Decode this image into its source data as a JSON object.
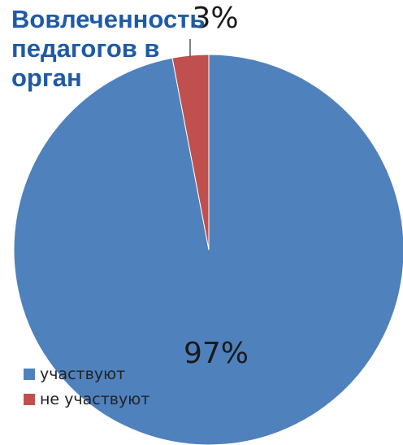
{
  "title": "Вовлеченность\nпедагогов в\nорган",
  "colors": {
    "title": "#1f5aa6",
    "participate": "#4f81bd",
    "not_participate": "#c0504d"
  },
  "chart_data": {
    "type": "pie",
    "title": "",
    "categories": [
      "участвуют",
      "не участвуют"
    ],
    "values": [
      97,
      3
    ],
    "labels": [
      "97%",
      "3%"
    ],
    "colors": [
      "#4f81bd",
      "#c0504d"
    ],
    "legend": {
      "position": "bottom-left",
      "items": [
        "участвуют",
        "не участвуют"
      ]
    }
  }
}
